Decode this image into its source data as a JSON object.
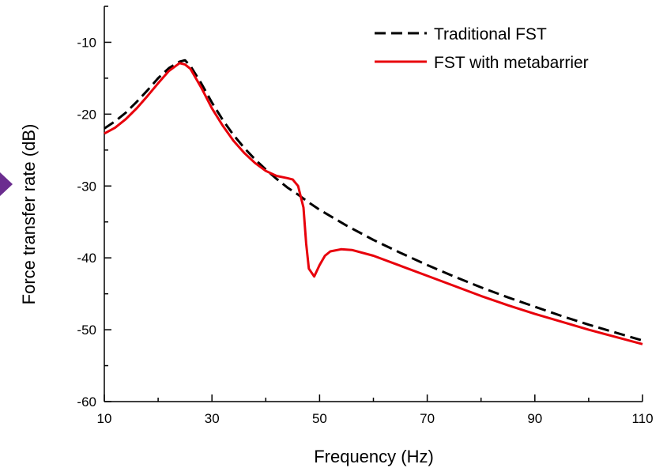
{
  "chart_data": {
    "type": "line",
    "title": "",
    "xlabel": "Frequency (Hz)",
    "ylabel": "Force transfer rate (dB)",
    "xlim": [
      10,
      110
    ],
    "ylim": [
      -60,
      -5
    ],
    "x_ticks": [
      10,
      30,
      50,
      70,
      90,
      110
    ],
    "y_ticks": [
      -60,
      -50,
      -40,
      -30,
      -20,
      -10
    ],
    "x_tick_labels": [
      "10",
      "30",
      "50",
      "70",
      "90",
      "110"
    ],
    "y_tick_labels": [
      "-60",
      "-50",
      "-40",
      "-30",
      "-20",
      "-10"
    ],
    "grid": false,
    "legend_position": "top-right",
    "series": [
      {
        "name": "Traditional FST",
        "color": "#000000",
        "style": "dashed",
        "x": [
          10,
          12,
          14,
          16,
          18,
          20,
          22,
          24,
          25,
          26,
          28,
          30,
          32,
          34,
          36,
          38,
          40,
          42,
          44,
          46,
          48,
          50,
          55,
          60,
          65,
          70,
          75,
          80,
          85,
          90,
          95,
          100,
          105,
          110
        ],
        "y": [
          -22,
          -21,
          -19.8,
          -18.3,
          -16.7,
          -15,
          -13.6,
          -12.7,
          -12.5,
          -13.3,
          -15.7,
          -18.4,
          -20.8,
          -22.9,
          -24.7,
          -26.3,
          -27.7,
          -29,
          -30.2,
          -31.2,
          -32.3,
          -33.3,
          -35.5,
          -37.5,
          -39.3,
          -41,
          -42.6,
          -44.1,
          -45.5,
          -46.8,
          -48.1,
          -49.3,
          -50.4,
          -51.5
        ]
      },
      {
        "name": "FST with metabarrier",
        "color": "#e8000b",
        "style": "solid",
        "x": [
          10,
          12,
          14,
          16,
          18,
          20,
          22,
          24,
          25,
          26,
          28,
          30,
          32,
          34,
          36,
          38,
          40,
          42,
          44,
          45,
          46,
          47,
          47.5,
          48,
          49,
          50,
          51,
          52,
          54,
          56,
          60,
          65,
          70,
          75,
          80,
          85,
          90,
          95,
          100,
          105,
          110
        ],
        "y": [
          -22.7,
          -21.9,
          -20.7,
          -19.2,
          -17.5,
          -15.7,
          -14,
          -12.9,
          -13.1,
          -13.7,
          -16.3,
          -19.2,
          -21.6,
          -23.7,
          -25.4,
          -26.8,
          -27.9,
          -28.6,
          -28.9,
          -29.1,
          -30,
          -33,
          -38,
          -41.5,
          -42.6,
          -41,
          -39.7,
          -39.1,
          -38.8,
          -38.9,
          -39.7,
          -41.1,
          -42.5,
          -43.9,
          -45.3,
          -46.6,
          -47.8,
          -48.9,
          -50,
          -51,
          -52
        ]
      }
    ]
  }
}
